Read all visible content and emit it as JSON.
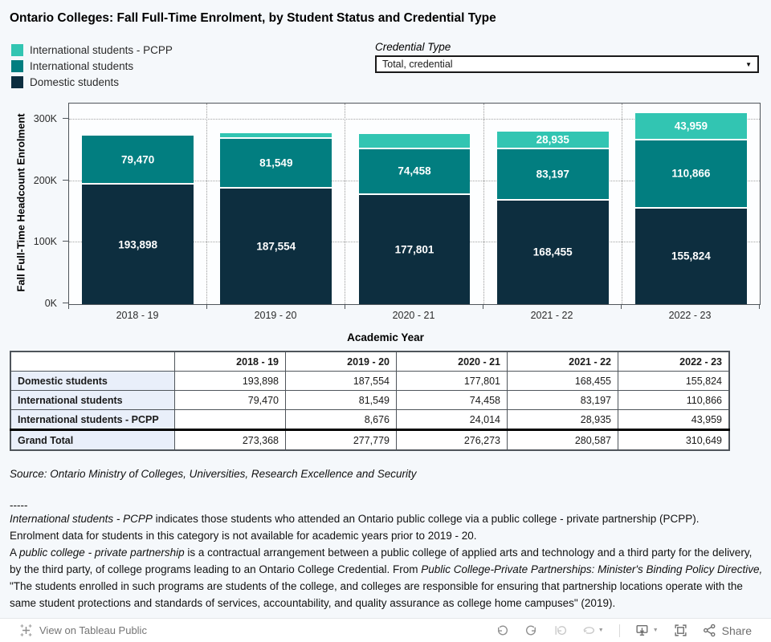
{
  "title": "Ontario Colleges: Fall Full-Time Enrolment, by Student Status and Credential Type",
  "legend": {
    "items": [
      {
        "label": "International students - PCPP",
        "color": "#32c5b2"
      },
      {
        "label": "International students",
        "color": "#027e80"
      },
      {
        "label": "Domestic students",
        "color": "#0d2e3f"
      }
    ]
  },
  "filter": {
    "label": "Credential Type",
    "value": "Total, credential"
  },
  "chart_data": {
    "type": "bar",
    "stacked": true,
    "categories": [
      "2018 - 19",
      "2019 - 20",
      "2020 - 21",
      "2021 - 22",
      "2022 - 23"
    ],
    "series": [
      {
        "name": "Domestic students",
        "color": "#0d2e3f",
        "values": [
          193898,
          187554,
          177801,
          168455,
          155824
        ],
        "labels": [
          "193,898",
          "187,554",
          "177,801",
          "168,455",
          "155,824"
        ]
      },
      {
        "name": "International students",
        "color": "#027e80",
        "values": [
          79470,
          81549,
          74458,
          83197,
          110866
        ],
        "labels": [
          "79,470",
          "81,549",
          "74,458",
          "83,197",
          "110,866"
        ]
      },
      {
        "name": "International students - PCPP",
        "color": "#32c5b2",
        "values": [
          0,
          8676,
          24014,
          28935,
          43959
        ],
        "labels": [
          null,
          null,
          null,
          "28,935",
          "43,959"
        ]
      }
    ],
    "totals": [
      273368,
      277779,
      276273,
      280587,
      310649
    ],
    "xlabel": "Academic Year",
    "ylabel": "Fall Full-Time Headcount Enrolment",
    "yticks": [
      {
        "label": "0K",
        "value": 0
      },
      {
        "label": "100K",
        "value": 100000
      },
      {
        "label": "200K",
        "value": 200000
      },
      {
        "label": "300K",
        "value": 300000
      }
    ],
    "ylim": [
      0,
      326000
    ],
    "grid": "dotted horizontal at yticks, dotted vertical pane separators",
    "legend_position": "top-left"
  },
  "table": {
    "headers": [
      "",
      "2018 - 19",
      "2019 - 20",
      "2020 - 21",
      "2021 - 22",
      "2022 - 23"
    ],
    "rows": [
      [
        "Domestic students",
        "193,898",
        "187,554",
        "177,801",
        "168,455",
        "155,824"
      ],
      [
        "International students",
        "79,470",
        "81,549",
        "74,458",
        "83,197",
        "110,866"
      ],
      [
        "International students - PCPP",
        "",
        "8,676",
        "24,014",
        "28,935",
        "43,959"
      ],
      [
        "Grand Total",
        "273,368",
        "277,779",
        "276,273",
        "280,587",
        "310,649"
      ]
    ]
  },
  "source": "Source: Ontario Ministry of Colleges, Universities, Research Excellence and Security",
  "divider": "-----",
  "notes": {
    "seg1_italic": "International students - PCPP",
    "seg2": " indicates those students who attended an Ontario public college via a public college - private partnership (PCPP).",
    "seg3": "Enrolment data for students in this category is not available for academic years prior to 2019 - 20.",
    "seg4": "A ",
    "seg5_italic": "public college - private partnership",
    "seg6": " is  a contractual arrangement between a public college of applied arts and technology and a third party for the delivery, by the third party, of college programs leading to an Ontario College Credential. From ",
    "seg7_italic": "Public College-Private Partnerships: Minister's Binding Policy Directive,",
    "seg8": " \"The students enrolled in such programs are students of the college, and colleges are responsible for ensuring that partnership locations operate with the same student protections and standards of services, accountability, and quality assurance as college home campuses\" (2019)."
  },
  "footer": {
    "view_label": "View on Tableau Public",
    "share_label": "Share",
    "icons": [
      "tableau-logo-icon",
      "undo-icon",
      "redo-icon",
      "replay-icon",
      "refresh-icon",
      "caret-down-icon",
      "download-device-icon",
      "caret-down-icon",
      "fullscreen-icon",
      "share-icon"
    ]
  }
}
